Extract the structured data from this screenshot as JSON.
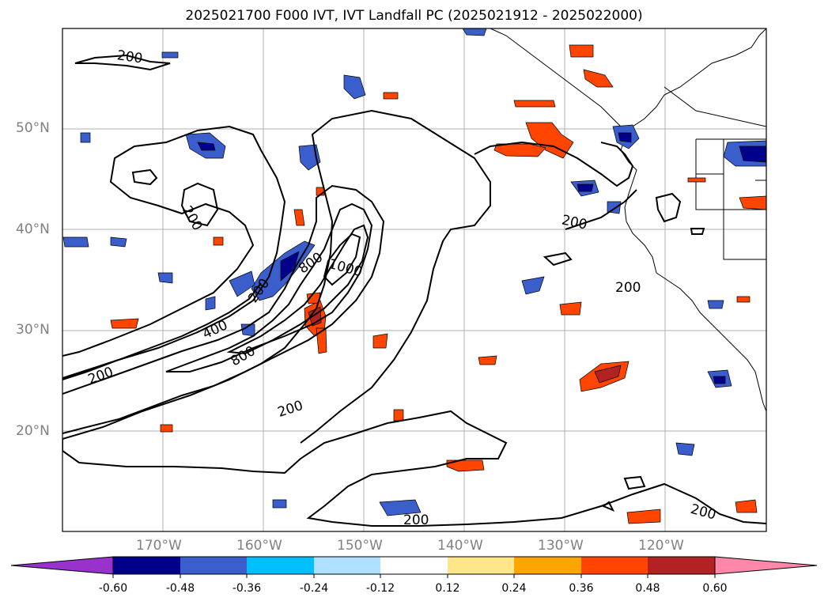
{
  "title": "2025021700 F000 IVT, IVT Landfall PC (2025021912 - 2025022000)",
  "lat_labels": [
    "50°N",
    "40°N",
    "30°N",
    "20°N"
  ],
  "lon_labels": [
    "170°W",
    "160°W",
    "150°W",
    "140°W",
    "130°W",
    "120°W"
  ],
  "contour_labels": [
    "200",
    "200",
    "200",
    "200",
    "200",
    "200",
    "200",
    "200",
    "200",
    "400",
    "800",
    "800",
    "1000"
  ],
  "colorbar": {
    "ticks": [
      "-0.60",
      "-0.48",
      "-0.36",
      "-0.24",
      "-0.12",
      "0.12",
      "0.24",
      "0.36",
      "0.48",
      "0.60"
    ],
    "colors": [
      "#9932cc",
      "#00008b",
      "#3a5fcd",
      "#00bfff",
      "#b0e0ff",
      "#ffffff",
      "#ffe68a",
      "#ffa500",
      "#ff4500",
      "#b22222",
      "#ff88aa"
    ]
  },
  "map_data": {
    "extent": {
      "lon": [
        -180,
        -110
      ],
      "lat": [
        10,
        60
      ]
    },
    "contour_levels": [
      200,
      400,
      600,
      800,
      1000
    ]
  }
}
